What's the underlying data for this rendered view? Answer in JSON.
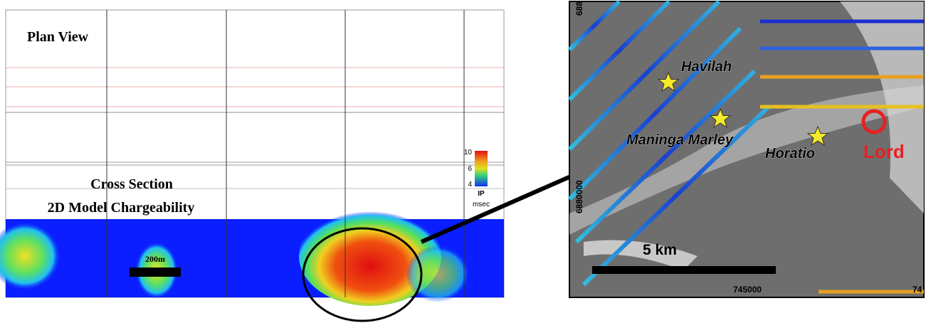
{
  "left_panel": {
    "plan_title": "Plan View",
    "section_title": "Cross Section",
    "section_subtitle": "2D Model Chargeability",
    "scale_label": "200m",
    "colorbar": {
      "labels": [
        "10",
        "6",
        "4"
      ],
      "title": "IP",
      "unit": "msec"
    }
  },
  "map": {
    "places": [
      "Havilah",
      "Maninga Marley",
      "Horatio",
      "Lord"
    ],
    "scale_label": "5 km",
    "coords": {
      "top_left": "688",
      "left": "6880000",
      "bottom": "745000",
      "bottom_right": "74"
    }
  }
}
